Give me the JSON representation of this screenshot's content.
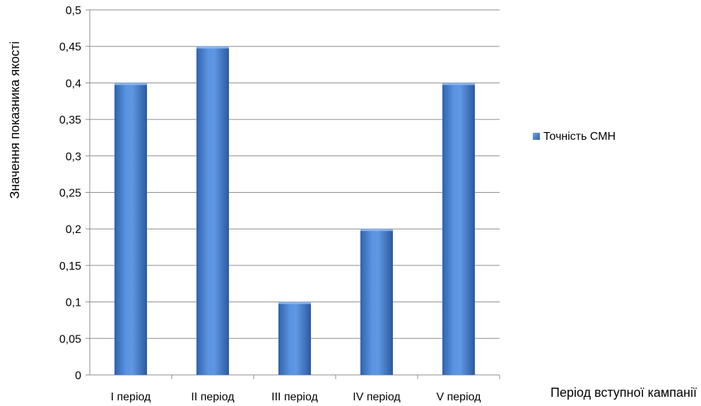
{
  "chart_data": {
    "type": "bar",
    "title": "",
    "xlabel": "Період вступної кампанії",
    "ylabel": "Значення показника якості",
    "categories": [
      "I період",
      "II період",
      "III період",
      "IV період",
      "V період"
    ],
    "series": [
      {
        "name": "Точність СМН",
        "values": [
          0.4,
          0.45,
          0.1,
          0.2,
          0.4
        ]
      }
    ],
    "ylim": [
      0,
      0.5
    ],
    "yticks": [
      "0",
      "0,05",
      "0,1",
      "0,15",
      "0,2",
      "0,25",
      "0,3",
      "0,35",
      "0,4",
      "0,45",
      "0,5"
    ],
    "grid": true,
    "legend": "right",
    "colors": {
      "bar_top": "#6fa3e8",
      "bar_mid": "#4a86d8",
      "bar_bottom": "#2f63ad",
      "grid": "#8c8c8c"
    }
  }
}
